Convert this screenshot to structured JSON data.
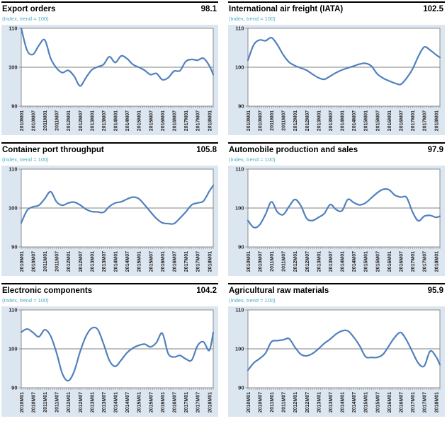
{
  "page": {
    "subtitle": "(Index, trend = 100)"
  },
  "colors": {
    "line": "#4F81BD",
    "panel_background": "#DCE6F1",
    "plot_background": "#FFFFFF",
    "grid": "#808080",
    "axis_text": "#262626",
    "subtitle_text": "#4BACC6",
    "title_text": "#000000",
    "header_rule": "#000000"
  },
  "axis": {
    "y_ticks": [
      110,
      100,
      90
    ],
    "y_min": 90,
    "y_max": 110,
    "x_tick_labels": [
      "2010M01",
      "2010M07",
      "2011M01",
      "2011M07",
      "2012M01",
      "2012M07",
      "2013M01",
      "2013M07",
      "2014M01",
      "2014M07",
      "2015M01",
      "2015M07",
      "2016M01",
      "2016M07",
      "2017M01",
      "2017M07",
      "2018M01"
    ],
    "x_tick_step_months": 6,
    "x_months_span": 98,
    "sample_months": [
      0,
      3,
      6,
      9,
      12,
      15,
      18,
      21,
      24,
      27,
      30,
      33,
      36,
      39,
      42,
      45,
      48,
      51,
      54,
      57,
      60,
      63,
      66,
      69,
      72,
      75,
      78,
      81,
      84,
      87,
      90,
      93,
      96,
      98
    ],
    "grid_lines_at": [
      100
    ],
    "legend": "none"
  },
  "chart_data": [
    {
      "type": "line",
      "title": "Export orders",
      "latest_value": "98.1",
      "values": [
        110,
        104.3,
        103.3,
        105.6,
        107,
        102.3,
        99.8,
        98.6,
        99.2,
        97.7,
        95.2,
        97.3,
        99.3,
        100.1,
        100.7,
        102.7,
        101.2,
        102.9,
        102.2,
        100.7,
        100,
        99.2,
        98.1,
        98.4,
        96.8,
        97.3,
        99,
        99.1,
        101.5,
        102,
        101.8,
        102.3,
        100.4,
        98.1
      ]
    },
    {
      "type": "line",
      "title": "International air freight (IATA)",
      "latest_value": "102.5",
      "values": [
        101.8,
        105.8,
        107,
        106.8,
        107.6,
        105.8,
        103.2,
        101.3,
        100.4,
        99.8,
        99.2,
        98.2,
        97.3,
        96.9,
        97.7,
        98.6,
        99.3,
        99.8,
        100.3,
        100.8,
        101,
        100.3,
        98.3,
        97.2,
        96.5,
        95.9,
        95.6,
        97.2,
        99.5,
        102.8,
        105.2,
        104.4,
        103.2,
        102.5
      ]
    },
    {
      "type": "line",
      "title": "Container port throughput",
      "latest_value": "105.8",
      "values": [
        96.2,
        99.4,
        100.3,
        100.7,
        102.4,
        104.2,
        101.6,
        100.7,
        101.3,
        101.5,
        100.8,
        99.7,
        99.1,
        99,
        98.9,
        100.4,
        101.3,
        101.6,
        102.3,
        102.8,
        102.4,
        100.8,
        99,
        97.3,
        96.2,
        96,
        96,
        97.4,
        99,
        100.8,
        101.3,
        101.8,
        104.3,
        105.8
      ]
    },
    {
      "type": "line",
      "title": "Automobile production and sales",
      "latest_value": "97.9",
      "values": [
        96.8,
        95,
        95.7,
        98.4,
        101.6,
        99,
        98.3,
        100.4,
        102.2,
        100.6,
        97.3,
        96.8,
        97.6,
        98.6,
        100.9,
        99.6,
        99.3,
        102.2,
        101.4,
        100.8,
        101.3,
        102.6,
        103.9,
        104.8,
        104.7,
        103.3,
        102.8,
        102.7,
        99,
        96.7,
        97.9,
        98.1,
        97.6,
        97.9
      ]
    },
    {
      "type": "line",
      "title": "Electronic components",
      "latest_value": "104.2",
      "values": [
        104.3,
        105.1,
        104.2,
        103.1,
        104.9,
        103.3,
        99,
        93.6,
        91.8,
        94.2,
        99.2,
        103.2,
        105.3,
        105,
        101.3,
        97,
        95.5,
        97.1,
        99,
        100.2,
        100.9,
        101.2,
        100.5,
        101.6,
        104,
        98.8,
        97.9,
        98.3,
        97.4,
        97.1,
        100.8,
        101.8,
        99.6,
        104.2
      ]
    },
    {
      "type": "line",
      "title": "Agricultural raw materials",
      "latest_value": "95.9",
      "values": [
        94.5,
        96.4,
        97.5,
        98.9,
        101.8,
        102.1,
        102.3,
        102.6,
        100.4,
        98.6,
        98.2,
        98.8,
        100,
        101.4,
        102.5,
        103.8,
        104.6,
        104.6,
        103,
        100.8,
        98,
        97.8,
        97.8,
        98.6,
        100.8,
        103,
        104.2,
        102.2,
        99.2,
        96.3,
        95.6,
        99.4,
        98,
        95.9
      ]
    }
  ]
}
